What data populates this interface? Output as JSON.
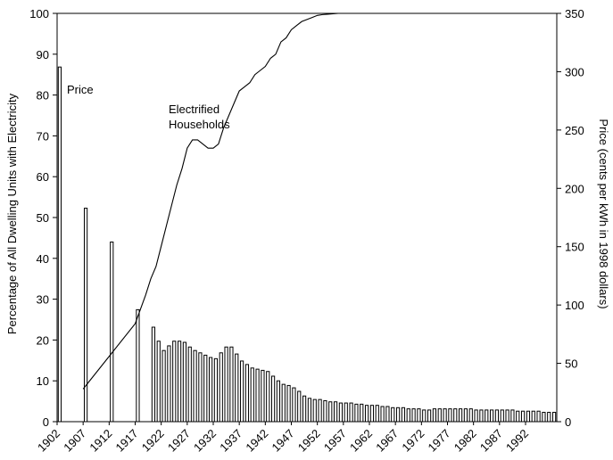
{
  "chart_data": {
    "type": "bar+line",
    "x_tick_labels": [
      "1902",
      "1907",
      "1912",
      "1917",
      "1922",
      "1927",
      "1932",
      "1937",
      "1942",
      "1947",
      "1952",
      "1957",
      "1962",
      "1967",
      "1972",
      "1977",
      "1982",
      "1987",
      "1992"
    ],
    "left_axis": {
      "label": "Percentage of All Dwelling Units with Electricity",
      "ylim": [
        0,
        100
      ],
      "ticks": [
        "0",
        "10",
        "20",
        "30",
        "40",
        "50",
        "60",
        "70",
        "80",
        "90",
        "100"
      ]
    },
    "right_axis": {
      "label": "Price (cents per kWh in 1998 dollars)",
      "ylim": [
        0,
        350
      ],
      "ticks": [
        "0",
        "50",
        "100",
        "150",
        "200",
        "250",
        "300",
        "350"
      ]
    },
    "xlim": [
      1902,
      1998
    ],
    "annotations": {
      "price": "Price",
      "households_line1": "Electrified",
      "households_line2": "Households"
    },
    "price_series": {
      "name": "Price",
      "axis": "right",
      "years": [
        1902,
        1907,
        1912,
        1917,
        1920,
        1921,
        1922,
        1923,
        1924,
        1925,
        1926,
        1927,
        1928,
        1929,
        1930,
        1931,
        1932,
        1933,
        1934,
        1935,
        1936,
        1937,
        1938,
        1939,
        1940,
        1941,
        1942,
        1943,
        1944,
        1945,
        1946,
        1947,
        1948,
        1949,
        1950,
        1951,
        1952,
        1953,
        1954,
        1955,
        1956,
        1957,
        1958,
        1959,
        1960,
        1961,
        1962,
        1963,
        1964,
        1965,
        1966,
        1967,
        1968,
        1969,
        1970,
        1971,
        1972,
        1973,
        1974,
        1975,
        1976,
        1977,
        1978,
        1979,
        1980,
        1981,
        1982,
        1983,
        1984,
        1985,
        1986,
        1987,
        1988,
        1989,
        1990,
        1991,
        1992,
        1993,
        1994,
        1995,
        1996,
        1997
      ],
      "values": [
        304,
        183,
        154,
        96,
        81,
        69,
        61,
        65,
        69,
        69,
        68,
        64,
        61,
        59,
        57,
        55,
        54,
        59,
        64,
        64,
        58,
        52,
        49,
        46,
        45,
        44,
        43,
        39,
        35,
        32,
        31,
        29,
        26,
        22,
        20,
        19,
        19,
        18,
        17,
        17,
        16,
        16,
        16,
        15,
        15,
        14,
        14,
        14,
        13,
        13,
        12,
        12,
        12,
        11,
        11,
        11,
        10,
        10,
        11,
        11,
        11,
        11,
        11,
        11,
        11,
        11,
        10,
        10,
        10,
        10,
        10,
        10,
        10,
        10,
        9,
        9,
        9,
        9,
        9,
        8,
        8,
        8
      ]
    },
    "households_series": {
      "name": "Electrified Households",
      "axis": "left",
      "years": [
        1907,
        1912,
        1917,
        1919,
        1920,
        1921,
        1922,
        1923,
        1924,
        1925,
        1926,
        1927,
        1928,
        1929,
        1930,
        1931,
        1932,
        1933,
        1934,
        1935,
        1936,
        1937,
        1938,
        1939,
        1940,
        1941,
        1942,
        1943,
        1944,
        1945,
        1946,
        1947,
        1948,
        1949,
        1950,
        1951,
        1952,
        1953,
        1954,
        1955,
        1956,
        1957,
        1960,
        1965,
        1970,
        1975,
        1980,
        1985,
        1990,
        1997
      ],
      "values": [
        8,
        16,
        24,
        31,
        35,
        38,
        43,
        48,
        53,
        58,
        62,
        67,
        69,
        69,
        68,
        67,
        67,
        68,
        72,
        75,
        78,
        81,
        82,
        83,
        85,
        86,
        87,
        89,
        90,
        93,
        94,
        96,
        97,
        98,
        98.5,
        99,
        99.5,
        99.7,
        99.8,
        99.9,
        100,
        100,
        100,
        100,
        100,
        100,
        100,
        100,
        100,
        100
      ]
    }
  }
}
